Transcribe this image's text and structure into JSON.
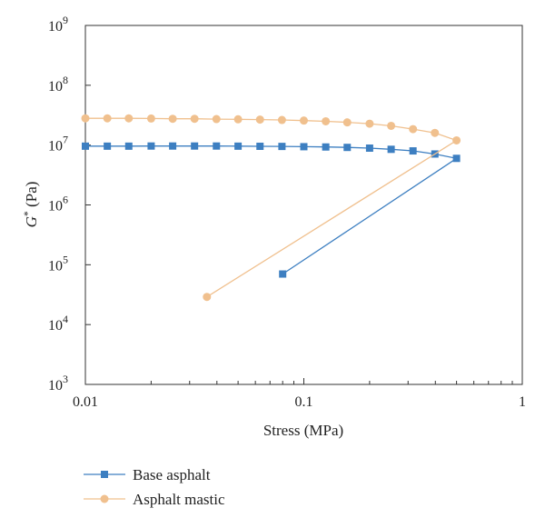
{
  "chart_data": {
    "type": "line",
    "xlabel": "Stress (MPa)",
    "ylabel_main": "G",
    "ylabel_sup": "*",
    "ylabel_unit": " (Pa)",
    "x_scale": "log",
    "y_scale": "log",
    "xlim": [
      0.01,
      1
    ],
    "ylim": [
      1000,
      1000000000
    ],
    "x_ticks": [
      {
        "value": 0.01,
        "label": "0.01"
      },
      {
        "value": 0.1,
        "label": "0.1"
      },
      {
        "value": 1,
        "label": "1"
      }
    ],
    "y_ticks": [
      {
        "value": 1000,
        "base": "10",
        "exp": "3"
      },
      {
        "value": 10000,
        "base": "10",
        "exp": "4"
      },
      {
        "value": 100000,
        "base": "10",
        "exp": "5"
      },
      {
        "value": 1000000,
        "base": "10",
        "exp": "6"
      },
      {
        "value": 10000000,
        "base": "10",
        "exp": "7"
      },
      {
        "value": 100000000,
        "base": "10",
        "exp": "8"
      },
      {
        "value": 1000000000,
        "base": "10",
        "exp": "9"
      }
    ],
    "grid": false,
    "legend_position": "bottom-left",
    "series": [
      {
        "name": "Base asphalt",
        "color": "#3d7fc1",
        "marker": "square",
        "points": [
          [
            0.01,
            9600000
          ],
          [
            0.0126,
            9600000
          ],
          [
            0.0158,
            9600000
          ],
          [
            0.02,
            9650000
          ],
          [
            0.0251,
            9650000
          ],
          [
            0.0316,
            9650000
          ],
          [
            0.0398,
            9650000
          ],
          [
            0.05,
            9600000
          ],
          [
            0.063,
            9550000
          ],
          [
            0.0794,
            9500000
          ],
          [
            0.1,
            9400000
          ],
          [
            0.126,
            9300000
          ],
          [
            0.158,
            9150000
          ],
          [
            0.2,
            8900000
          ],
          [
            0.251,
            8500000
          ],
          [
            0.316,
            8000000
          ],
          [
            0.398,
            7100000
          ],
          [
            0.5,
            6000000
          ],
          [
            0.08,
            70000
          ]
        ]
      },
      {
        "name": "Asphalt mastic",
        "color": "#f0c08e",
        "marker": "circle",
        "points": [
          [
            0.01,
            28000000
          ],
          [
            0.0126,
            28000000
          ],
          [
            0.0158,
            28000000
          ],
          [
            0.02,
            27800000
          ],
          [
            0.0251,
            27500000
          ],
          [
            0.0316,
            27500000
          ],
          [
            0.0398,
            27200000
          ],
          [
            0.05,
            27000000
          ],
          [
            0.063,
            26700000
          ],
          [
            0.0794,
            26300000
          ],
          [
            0.1,
            25700000
          ],
          [
            0.126,
            25000000
          ],
          [
            0.158,
            24000000
          ],
          [
            0.2,
            22800000
          ],
          [
            0.251,
            21000000
          ],
          [
            0.316,
            18500000
          ],
          [
            0.398,
            16000000
          ],
          [
            0.5,
            12000000
          ],
          [
            0.036,
            29000
          ]
        ]
      }
    ]
  }
}
